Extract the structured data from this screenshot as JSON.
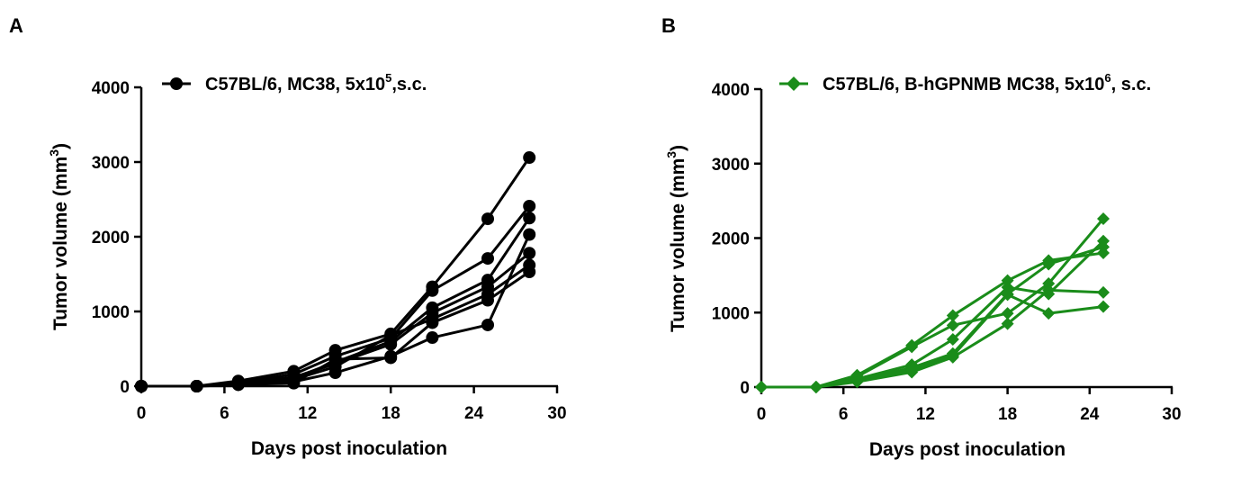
{
  "chart_data": [
    {
      "panel": "A",
      "type": "line",
      "xlabel": "Days post inoculation",
      "ylabel": "Tumor volume (mm",
      "ylabel_sup": "3",
      "ylabel_end": ")",
      "xlim": [
        0,
        30
      ],
      "ylim": [
        0,
        4000
      ],
      "xticks": [
        0,
        6,
        12,
        18,
        24,
        30
      ],
      "yticks": [
        0,
        1000,
        2000,
        3000,
        4000
      ],
      "legend": {
        "label": "C57BL/6, MC38, 5x10",
        "sup": "5",
        "label_end": ",s.c.",
        "marker": "circle",
        "placement": "top"
      },
      "color": "#000000",
      "marker": "circle",
      "x": [
        0,
        4,
        7,
        11,
        14,
        18,
        21,
        25,
        28
      ],
      "series": [
        {
          "values": [
            0,
            0,
            70,
            200,
            480,
            700,
            1330,
            2240,
            3060
          ]
        },
        {
          "values": [
            0,
            0,
            50,
            160,
            400,
            640,
            1280,
            1710,
            2410
          ]
        },
        {
          "values": [
            0,
            0,
            30,
            110,
            320,
            600,
            1050,
            1420,
            2250
          ]
        },
        {
          "values": [
            0,
            0,
            20,
            60,
            180,
            400,
            650,
            820,
            2030
          ]
        },
        {
          "values": [
            0,
            0,
            40,
            120,
            300,
            560,
            980,
            1330,
            1780
          ]
        },
        {
          "values": [
            0,
            0,
            30,
            90,
            260,
            680,
            900,
            1230,
            1620
          ]
        },
        {
          "values": [
            0,
            0,
            20,
            40,
            360,
            380,
            850,
            1150,
            1530
          ]
        }
      ]
    },
    {
      "panel": "B",
      "type": "line",
      "xlabel": "Days post inoculation",
      "ylabel": "Tumor volume (mm",
      "ylabel_sup": "3",
      "ylabel_end": ")",
      "xlim": [
        0,
        30
      ],
      "ylim": [
        0,
        4000
      ],
      "xticks": [
        0,
        6,
        12,
        18,
        24,
        30
      ],
      "yticks": [
        0,
        1000,
        2000,
        3000,
        4000
      ],
      "legend": {
        "label": "C57BL/6, B-hGPNMB MC38, 5x10",
        "sup": "6",
        "label_end": ", s.c.",
        "marker": "diamond",
        "placement": "top"
      },
      "color": "#1a8c1a",
      "marker": "diamond",
      "x": [
        0,
        4,
        7,
        11,
        14,
        18,
        21,
        25
      ],
      "series": [
        {
          "values": [
            0,
            0,
            160,
            560,
            960,
            1430,
            1700,
            1800
          ]
        },
        {
          "values": [
            0,
            0,
            140,
            540,
            830,
            990,
            1390,
            2260
          ]
        },
        {
          "values": [
            0,
            0,
            110,
            300,
            640,
            1340,
            1250,
            1960
          ]
        },
        {
          "values": [
            0,
            0,
            90,
            260,
            450,
            1250,
            1650,
            1880
          ]
        },
        {
          "values": [
            0,
            0,
            70,
            200,
            400,
            850,
            1300,
            1270
          ]
        },
        {
          "values": [
            0,
            0,
            100,
            230,
            420,
            1240,
            990,
            1080
          ]
        }
      ]
    }
  ]
}
